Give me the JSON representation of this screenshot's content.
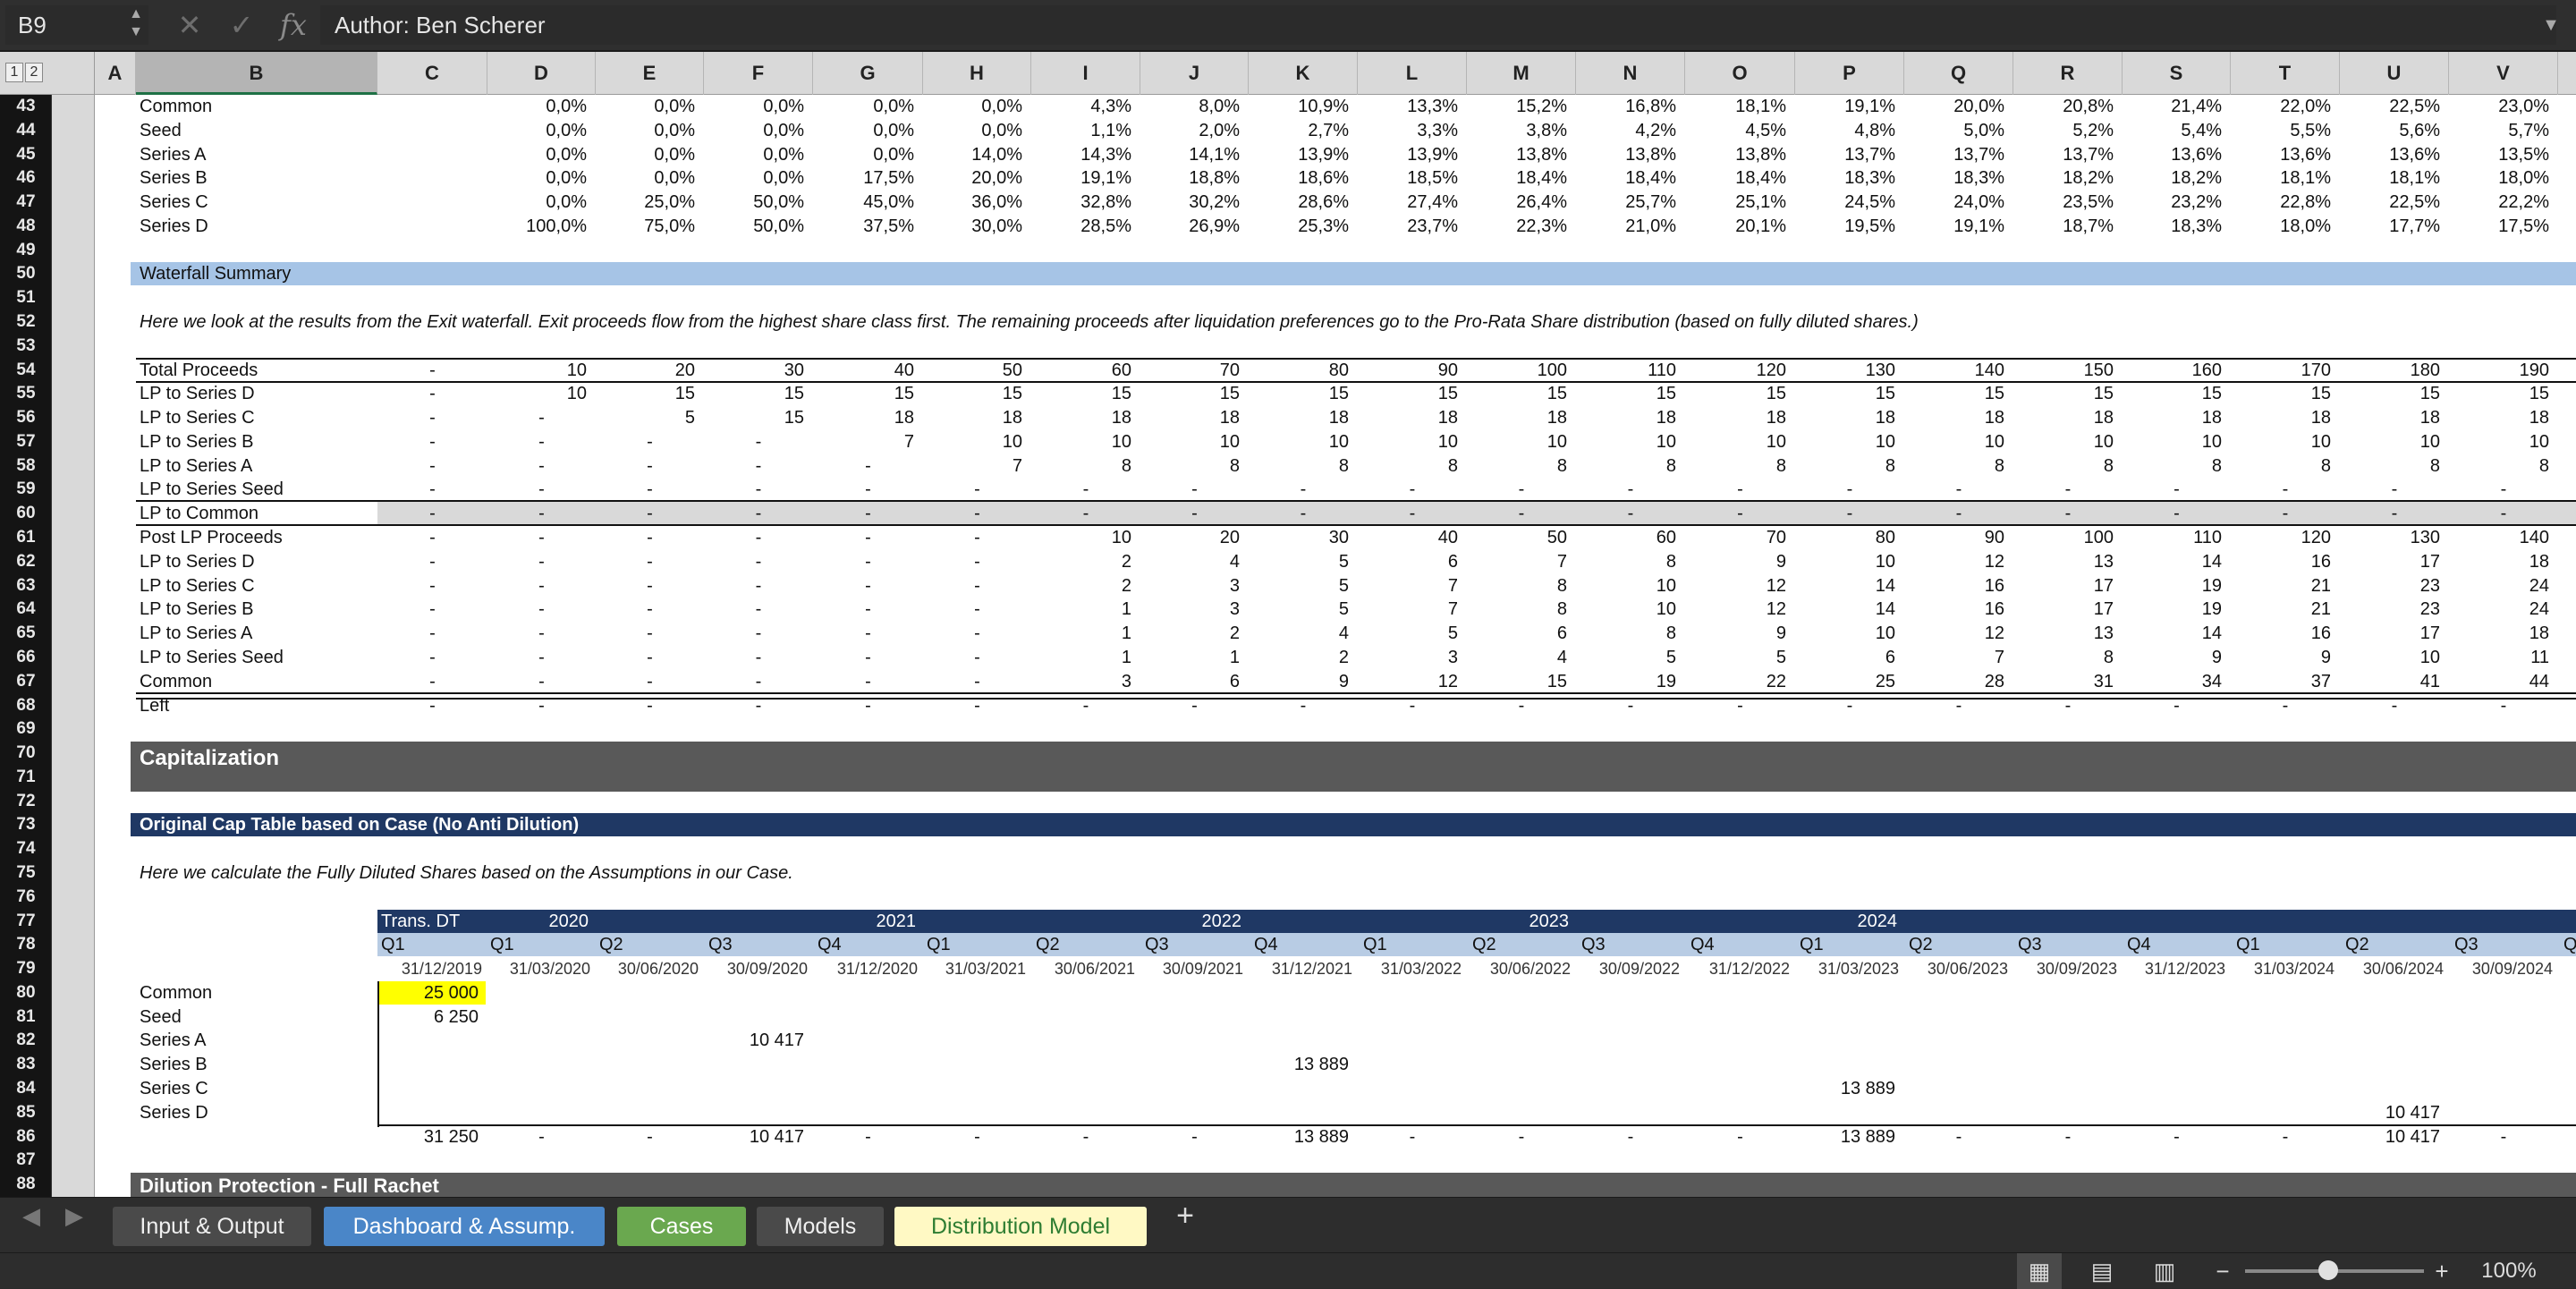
{
  "formula_bar": {
    "cell_ref": "B9",
    "content": "Author: Ben Scherer",
    "cancel_icon": "✕",
    "confirm_icon": "✓",
    "fx_label": "fx"
  },
  "outline_levels": [
    "1",
    "2"
  ],
  "columns": [
    "A",
    "B",
    "C",
    "D",
    "E",
    "F",
    "G",
    "H",
    "I",
    "J",
    "K",
    "L",
    "M",
    "N",
    "O",
    "P",
    "Q",
    "R",
    "S",
    "T",
    "U",
    "V"
  ],
  "rows": [
    "43",
    "44",
    "45",
    "46",
    "47",
    "48",
    "49",
    "50",
    "51",
    "52",
    "53",
    "54",
    "55",
    "56",
    "57",
    "58",
    "59",
    "60",
    "61",
    "62",
    "63",
    "64",
    "65",
    "66",
    "67",
    "68",
    "69",
    "70",
    "71",
    "72",
    "73",
    "74",
    "75",
    "76",
    "77",
    "78",
    "79",
    "80",
    "81",
    "82",
    "83",
    "84",
    "85",
    "86",
    "87",
    "88"
  ],
  "pct_block": [
    {
      "label": "Common",
      "values": [
        "0,0%",
        "0,0%",
        "0,0%",
        "0,0%",
        "0,0%",
        "4,3%",
        "8,0%",
        "10,9%",
        "13,3%",
        "15,2%",
        "16,8%",
        "18,1%",
        "19,1%",
        "20,0%",
        "20,8%",
        "21,4%",
        "22,0%",
        "22,5%",
        "23,0%"
      ]
    },
    {
      "label": "Seed",
      "values": [
        "0,0%",
        "0,0%",
        "0,0%",
        "0,0%",
        "0,0%",
        "1,1%",
        "2,0%",
        "2,7%",
        "3,3%",
        "3,8%",
        "4,2%",
        "4,5%",
        "4,8%",
        "5,0%",
        "5,2%",
        "5,4%",
        "5,5%",
        "5,6%",
        "5,7%"
      ]
    },
    {
      "label": "Series A",
      "values": [
        "0,0%",
        "0,0%",
        "0,0%",
        "0,0%",
        "14,0%",
        "14,3%",
        "14,1%",
        "13,9%",
        "13,9%",
        "13,8%",
        "13,8%",
        "13,8%",
        "13,7%",
        "13,7%",
        "13,7%",
        "13,6%",
        "13,6%",
        "13,6%",
        "13,5%"
      ]
    },
    {
      "label": "Series B",
      "values": [
        "0,0%",
        "0,0%",
        "0,0%",
        "17,5%",
        "20,0%",
        "19,1%",
        "18,8%",
        "18,6%",
        "18,5%",
        "18,4%",
        "18,4%",
        "18,4%",
        "18,3%",
        "18,3%",
        "18,2%",
        "18,2%",
        "18,1%",
        "18,1%",
        "18,0%"
      ]
    },
    {
      "label": "Series C",
      "values": [
        "0,0%",
        "25,0%",
        "50,0%",
        "45,0%",
        "36,0%",
        "32,8%",
        "30,2%",
        "28,6%",
        "27,4%",
        "26,4%",
        "25,7%",
        "25,1%",
        "24,5%",
        "24,0%",
        "23,5%",
        "23,2%",
        "22,8%",
        "22,5%",
        "22,2%"
      ]
    },
    {
      "label": "Series D",
      "values": [
        "100,0%",
        "75,0%",
        "50,0%",
        "37,5%",
        "30,0%",
        "28,5%",
        "26,9%",
        "25,3%",
        "23,7%",
        "22,3%",
        "21,0%",
        "20,1%",
        "19,5%",
        "19,1%",
        "18,7%",
        "18,3%",
        "18,0%",
        "17,7%",
        "17,5%"
      ]
    }
  ],
  "waterfall": {
    "title": "Waterfall Summary",
    "note": "Here we look at the results from the Exit waterfall. Exit proceeds flow from the highest share class first. The remaining proceeds after liquidation preferences go to the Pro-Rata Share distribution (based on fully diluted shares.)",
    "rows": [
      {
        "label": "Total Proceeds",
        "values": [
          "-",
          "10",
          "20",
          "30",
          "40",
          "50",
          "60",
          "70",
          "80",
          "90",
          "100",
          "110",
          "120",
          "130",
          "140",
          "150",
          "160",
          "170",
          "180",
          "190"
        ]
      },
      {
        "label": "LP to Series D",
        "values": [
          "-",
          "10",
          "15",
          "15",
          "15",
          "15",
          "15",
          "15",
          "15",
          "15",
          "15",
          "15",
          "15",
          "15",
          "15",
          "15",
          "15",
          "15",
          "15",
          "15"
        ]
      },
      {
        "label": "LP to Series C",
        "values": [
          "-",
          "-",
          "5",
          "15",
          "18",
          "18",
          "18",
          "18",
          "18",
          "18",
          "18",
          "18",
          "18",
          "18",
          "18",
          "18",
          "18",
          "18",
          "18",
          "18"
        ]
      },
      {
        "label": "LP to Series B",
        "values": [
          "-",
          "-",
          "-",
          "-",
          "7",
          "10",
          "10",
          "10",
          "10",
          "10",
          "10",
          "10",
          "10",
          "10",
          "10",
          "10",
          "10",
          "10",
          "10",
          "10"
        ]
      },
      {
        "label": "LP to Series A",
        "values": [
          "-",
          "-",
          "-",
          "-",
          "-",
          "7",
          "8",
          "8",
          "8",
          "8",
          "8",
          "8",
          "8",
          "8",
          "8",
          "8",
          "8",
          "8",
          "8",
          "8"
        ]
      },
      {
        "label": "LP to Series Seed",
        "values": [
          "-",
          "-",
          "-",
          "-",
          "-",
          "-",
          "-",
          "-",
          "-",
          "-",
          "-",
          "-",
          "-",
          "-",
          "-",
          "-",
          "-",
          "-",
          "-",
          "-"
        ]
      },
      {
        "label": "LP to Common",
        "values": [
          "-",
          "-",
          "-",
          "-",
          "-",
          "-",
          "-",
          "-",
          "-",
          "-",
          "-",
          "-",
          "-",
          "-",
          "-",
          "-",
          "-",
          "-",
          "-",
          "-"
        ]
      },
      {
        "label": "Post LP Proceeds",
        "values": [
          "-",
          "-",
          "-",
          "-",
          "-",
          "-",
          "10",
          "20",
          "30",
          "40",
          "50",
          "60",
          "70",
          "80",
          "90",
          "100",
          "110",
          "120",
          "130",
          "140"
        ]
      },
      {
        "label": "LP to Series D",
        "values": [
          "-",
          "-",
          "-",
          "-",
          "-",
          "-",
          "2",
          "4",
          "5",
          "6",
          "7",
          "8",
          "9",
          "10",
          "12",
          "13",
          "14",
          "16",
          "17",
          "18"
        ]
      },
      {
        "label": "LP to Series C",
        "values": [
          "-",
          "-",
          "-",
          "-",
          "-",
          "-",
          "2",
          "3",
          "5",
          "7",
          "8",
          "10",
          "12",
          "14",
          "16",
          "17",
          "19",
          "21",
          "23",
          "24"
        ]
      },
      {
        "label": "LP to Series B",
        "values": [
          "-",
          "-",
          "-",
          "-",
          "-",
          "-",
          "1",
          "3",
          "5",
          "7",
          "8",
          "10",
          "12",
          "14",
          "16",
          "17",
          "19",
          "21",
          "23",
          "24"
        ]
      },
      {
        "label": "LP to Series A",
        "values": [
          "-",
          "-",
          "-",
          "-",
          "-",
          "-",
          "1",
          "2",
          "4",
          "5",
          "6",
          "8",
          "9",
          "10",
          "12",
          "13",
          "14",
          "16",
          "17",
          "18"
        ]
      },
      {
        "label": "LP to Series Seed",
        "values": [
          "-",
          "-",
          "-",
          "-",
          "-",
          "-",
          "1",
          "1",
          "2",
          "3",
          "4",
          "5",
          "5",
          "6",
          "7",
          "8",
          "9",
          "9",
          "10",
          "11"
        ]
      },
      {
        "label": "Common",
        "values": [
          "-",
          "-",
          "-",
          "-",
          "-",
          "-",
          "3",
          "6",
          "9",
          "12",
          "15",
          "19",
          "22",
          "25",
          "28",
          "31",
          "34",
          "37",
          "41",
          "44"
        ]
      },
      {
        "label": "Left",
        "values": [
          "-",
          "-",
          "-",
          "-",
          "-",
          "-",
          "-",
          "-",
          "-",
          "-",
          "-",
          "-",
          "-",
          "-",
          "-",
          "-",
          "-",
          "-",
          "-",
          "-"
        ]
      }
    ]
  },
  "capitalization": {
    "title": "Capitalization"
  },
  "cap_table": {
    "title": "Original Cap Table based on Case (No Anti Dilution)",
    "note": "Here we calculate the Fully Diluted Shares based on the Assumptions in our Case.",
    "trans_label": "Trans. DT",
    "years": [
      "2020",
      "2021",
      "2022",
      "2023",
      "2024"
    ],
    "quarters": [
      "Q1",
      "Q1",
      "Q2",
      "Q3",
      "Q4",
      "Q1",
      "Q2",
      "Q3",
      "Q4",
      "Q1",
      "Q2",
      "Q3",
      "Q4",
      "Q1",
      "Q2",
      "Q3",
      "Q4",
      "Q1",
      "Q2",
      "Q3",
      "Q"
    ],
    "dates": [
      "31/12/2019",
      "31/03/2020",
      "30/06/2020",
      "30/09/2020",
      "31/12/2020",
      "31/03/2021",
      "30/06/2021",
      "30/09/2021",
      "31/12/2021",
      "31/03/2022",
      "30/06/2022",
      "30/09/2022",
      "31/12/2022",
      "31/03/2023",
      "30/06/2023",
      "30/09/2023",
      "31/12/2023",
      "31/03/2024",
      "30/06/2024",
      "30/09/2024"
    ],
    "rows": [
      {
        "label": "Common",
        "values": [
          "25 000",
          "",
          "",
          "",
          "",
          "",
          "",
          "",
          "",
          "",
          "",
          "",
          "",
          "",
          "",
          "",
          "",
          "",
          "",
          ""
        ]
      },
      {
        "label": "Seed",
        "values": [
          "6 250",
          "",
          "",
          "",
          "",
          "",
          "",
          "",
          "",
          "",
          "",
          "",
          "",
          "",
          "",
          "",
          "",
          "",
          "",
          ""
        ]
      },
      {
        "label": "Series A",
        "values": [
          "",
          "",
          "",
          "10 417",
          "",
          "",
          "",
          "",
          "",
          "",
          "",
          "",
          "",
          "",
          "",
          "",
          "",
          "",
          "",
          ""
        ]
      },
      {
        "label": "Series B",
        "values": [
          "",
          "",
          "",
          "",
          "",
          "",
          "",
          "",
          "13 889",
          "",
          "",
          "",
          "",
          "",
          "",
          "",
          "",
          "",
          "",
          ""
        ]
      },
      {
        "label": "Series C",
        "values": [
          "",
          "",
          "",
          "",
          "",
          "",
          "",
          "",
          "",
          "",
          "",
          "",
          "",
          "13 889",
          "",
          "",
          "",
          "",
          "",
          ""
        ]
      },
      {
        "label": "Series D",
        "values": [
          "",
          "",
          "",
          "",
          "",
          "",
          "",
          "",
          "",
          "",
          "",
          "",
          "",
          "",
          "",
          "",
          "",
          "",
          "10 417",
          ""
        ]
      }
    ],
    "totals": [
      "31 250",
      "-",
      "-",
      "10 417",
      "-",
      "-",
      "-",
      "-",
      "13 889",
      "-",
      "-",
      "-",
      "-",
      "13 889",
      "-",
      "-",
      "-",
      "-",
      "10 417",
      "-"
    ]
  },
  "dilution": {
    "title": "Dilution Protection - Full Rachet"
  },
  "sheet_tabs": [
    {
      "label": "Input & Output",
      "color": "#4a4a4a",
      "text": "#f0f0f0"
    },
    {
      "label": "Dashboard & Assump.",
      "color": "#4a86c8",
      "text": "#ffffff"
    },
    {
      "label": "Cases",
      "color": "#6aa84f",
      "text": "#ffffff"
    },
    {
      "label": "Models",
      "color": "#4a4a4a",
      "text": "#f0f0f0"
    },
    {
      "label": "Distribution Model",
      "color": "#fff9c4",
      "text": "#2e7d32",
      "active": true
    }
  ],
  "add_sheet": "+",
  "status": {
    "zoom": "100%",
    "zoom_out": "−",
    "zoom_in": "+"
  },
  "colors": {
    "section_blue": "#a6c4e6",
    "navy": "#1f3864",
    "dark_header": "#595959",
    "highlight": "#ffff00",
    "cap_blue_light": "#b8cce4"
  }
}
